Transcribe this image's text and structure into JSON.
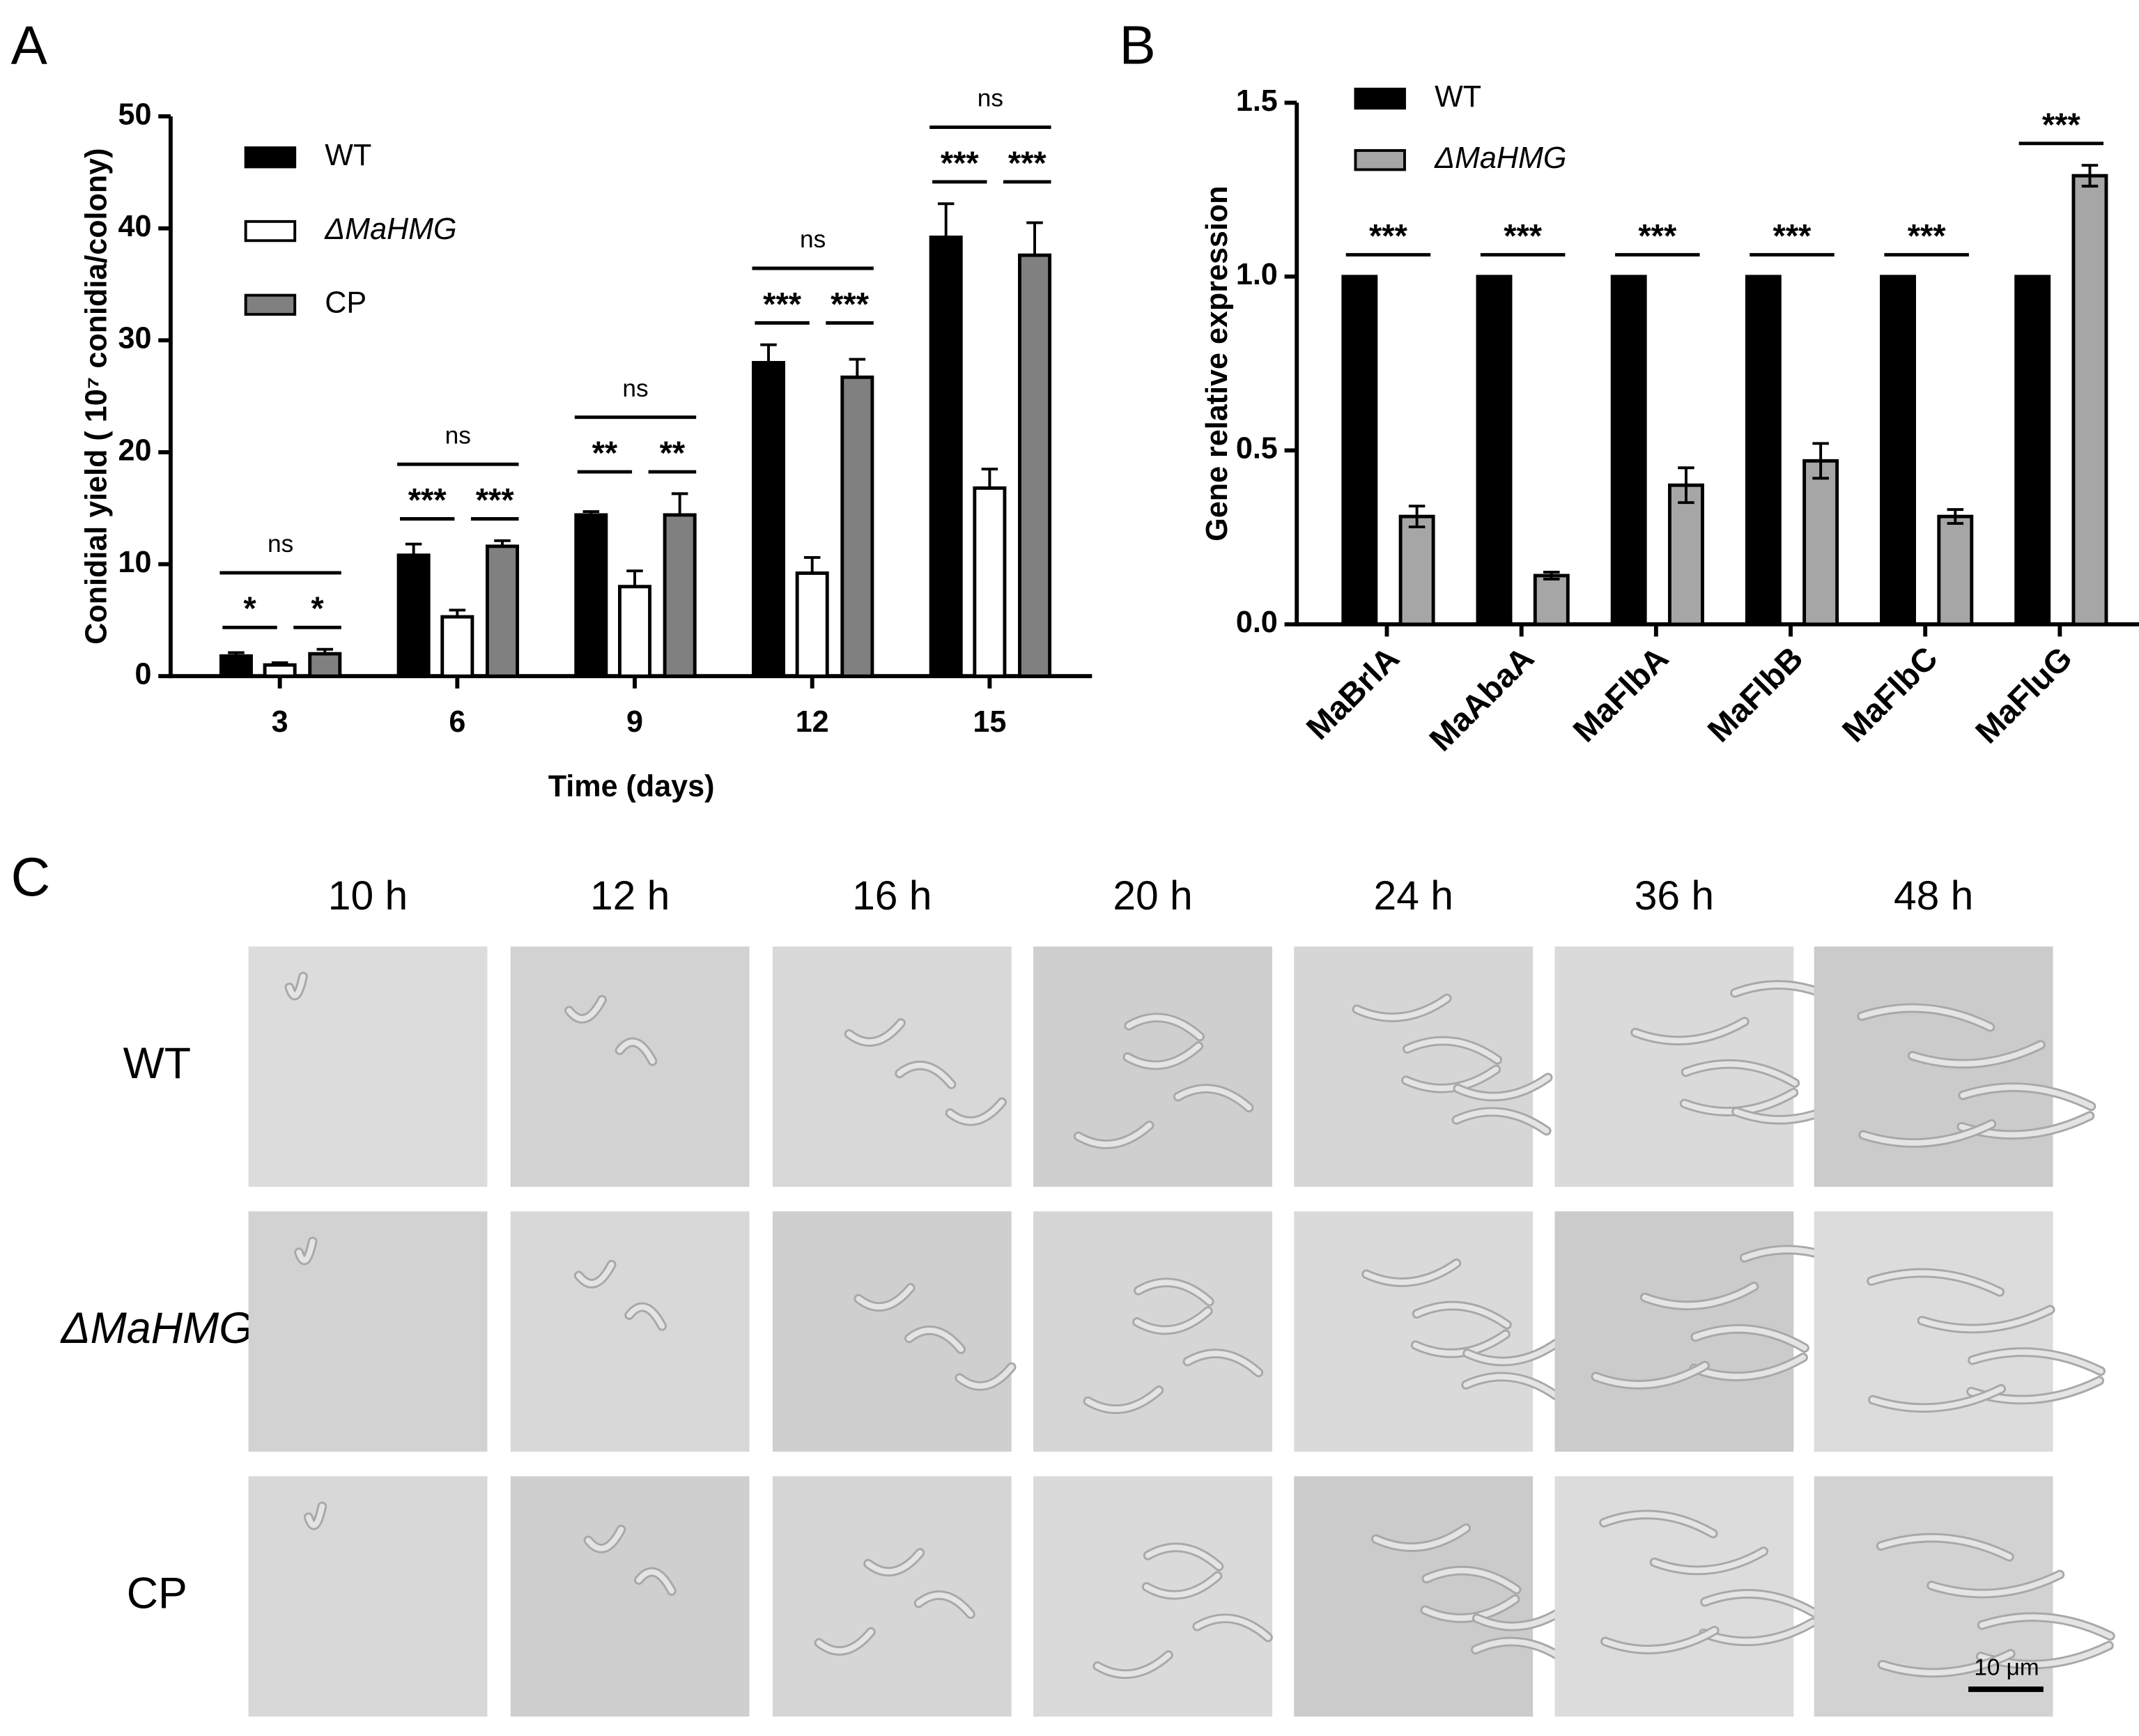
{
  "chart_data": [
    {
      "type": "bar",
      "panel_label": "A",
      "y_label": "Conidial yield ( 10⁷ conidia/colony)",
      "x_label": "Time (days)",
      "categories": [
        "3",
        "6",
        "9",
        "12",
        "15"
      ],
      "series": [
        {
          "name": "WT",
          "color": "#000000",
          "values": [
            1.8,
            10.8,
            14.4,
            28.0,
            39.2
          ],
          "errors": [
            0.3,
            1.0,
            0.3,
            1.6,
            3.0
          ]
        },
        {
          "name": "ΔMaHMG",
          "color": "#ffffff",
          "values": [
            1.0,
            5.3,
            8.0,
            9.2,
            16.8
          ],
          "errors": [
            0.2,
            0.6,
            1.4,
            1.4,
            1.7
          ]
        },
        {
          "name": "CP",
          "color": "#808080",
          "values": [
            2.0,
            11.6,
            14.4,
            26.7,
            37.6
          ],
          "errors": [
            0.4,
            0.5,
            1.9,
            1.6,
            2.9
          ]
        }
      ],
      "ylim": [
        0,
        50
      ],
      "yticks": [
        0,
        10,
        20,
        30,
        40,
        50
      ],
      "significance": [
        {
          "wt_vs_mutant": "*",
          "mutant_vs_cp": "*",
          "wt_vs_cp": "ns"
        },
        {
          "wt_vs_mutant": "***",
          "mutant_vs_cp": "***",
          "wt_vs_cp": "ns"
        },
        {
          "wt_vs_mutant": "**",
          "mutant_vs_cp": "**",
          "wt_vs_cp": "ns"
        },
        {
          "wt_vs_mutant": "***",
          "mutant_vs_cp": "***",
          "wt_vs_cp": "ns"
        },
        {
          "wt_vs_mutant": "***",
          "mutant_vs_cp": "***",
          "wt_vs_cp": "ns"
        }
      ]
    },
    {
      "type": "bar",
      "panel_label": "B",
      "y_label": "Gene relative expression",
      "categories": [
        "MaBrlA",
        "MaAbaA",
        "MaFlbA",
        "MaFlbB",
        "MaFlbC",
        "MaFluG"
      ],
      "series": [
        {
          "name": "WT",
          "color": "#000000",
          "values": [
            1,
            1,
            1,
            1,
            1,
            1
          ]
        },
        {
          "name": "ΔMaHMG",
          "color": "#a6a6a6",
          "values": [
            0.31,
            0.14,
            0.4,
            0.47,
            0.31,
            1.29
          ],
          "errors": [
            0.03,
            0.01,
            0.05,
            0.05,
            0.02,
            0.03
          ]
        }
      ],
      "ylim": [
        0,
        1.5
      ],
      "yticks": [
        {
          "value": 0,
          "label": "0.0"
        },
        0.5,
        {
          "value": 1,
          "label": "1.0"
        },
        1.5
      ],
      "significance": [
        {
          "wt_vs_mutant": "***"
        },
        {
          "wt_vs_mutant": "***"
        },
        {
          "wt_vs_mutant": "***"
        },
        {
          "wt_vs_mutant": "***"
        },
        {
          "wt_vs_mutant": "***"
        },
        {
          "wt_vs_mutant": "***"
        }
      ]
    }
  ],
  "panel_c": {
    "panel_label": "C",
    "columns": [
      "10 h",
      "12 h",
      "16 h",
      "20 h",
      "24 h",
      "36 h",
      "48 h"
    ],
    "rows": [
      "WT",
      "ΔMaHMG",
      "CP"
    ],
    "scale_bar": "10 μm"
  }
}
